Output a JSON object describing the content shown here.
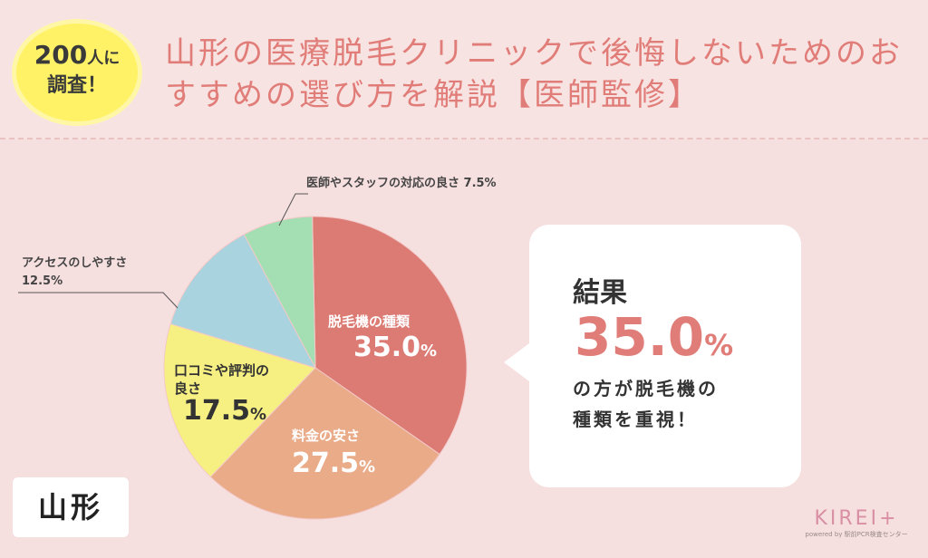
{
  "badge": {
    "count": "200",
    "count_suffix": "人に",
    "line2": "調査！"
  },
  "title": "山形の医療脱毛クリニックで後悔しないためのおすすめの選び方を解説【医師監修】",
  "chart_data": {
    "type": "pie",
    "slices": [
      {
        "label": "脱毛機の種類",
        "value": 35.0,
        "display": "35.0",
        "color": "#dc7b74"
      },
      {
        "label": "料金の安さ",
        "value": 27.5,
        "display": "27.5",
        "color": "#e9ab88"
      },
      {
        "label": "口コミや評判の良さ",
        "value": 17.5,
        "display": "17.5",
        "color": "#f6ef82"
      },
      {
        "label": "アクセスのしやすさ",
        "value": 12.5,
        "display": "12.5%",
        "color": "#a9d3de"
      },
      {
        "label": "医師やスタッフの対応の良さ",
        "value": 7.5,
        "display": "7.5%",
        "color": "#a4dfb3"
      }
    ],
    "percent_unit": "%",
    "labels": {
      "slice0": "脱毛機の種類",
      "slice1": "料金の安さ",
      "slice2_line1": "口コミや評判の",
      "slice2_line2": "良さ",
      "slice3_line1": "アクセスのしやすさ",
      "slice3_line2": "12.5%",
      "slice4": "医師やスタッフの対応の良さ 7.5%"
    }
  },
  "result": {
    "heading": "結果",
    "value": "35.0",
    "unit": "%",
    "line1": "の方が脱毛機の",
    "line2": "種類を重視！"
  },
  "region": "山形",
  "logo": {
    "main": "KIREI+",
    "sub": "powered by 駅前PCR検査センター"
  }
}
